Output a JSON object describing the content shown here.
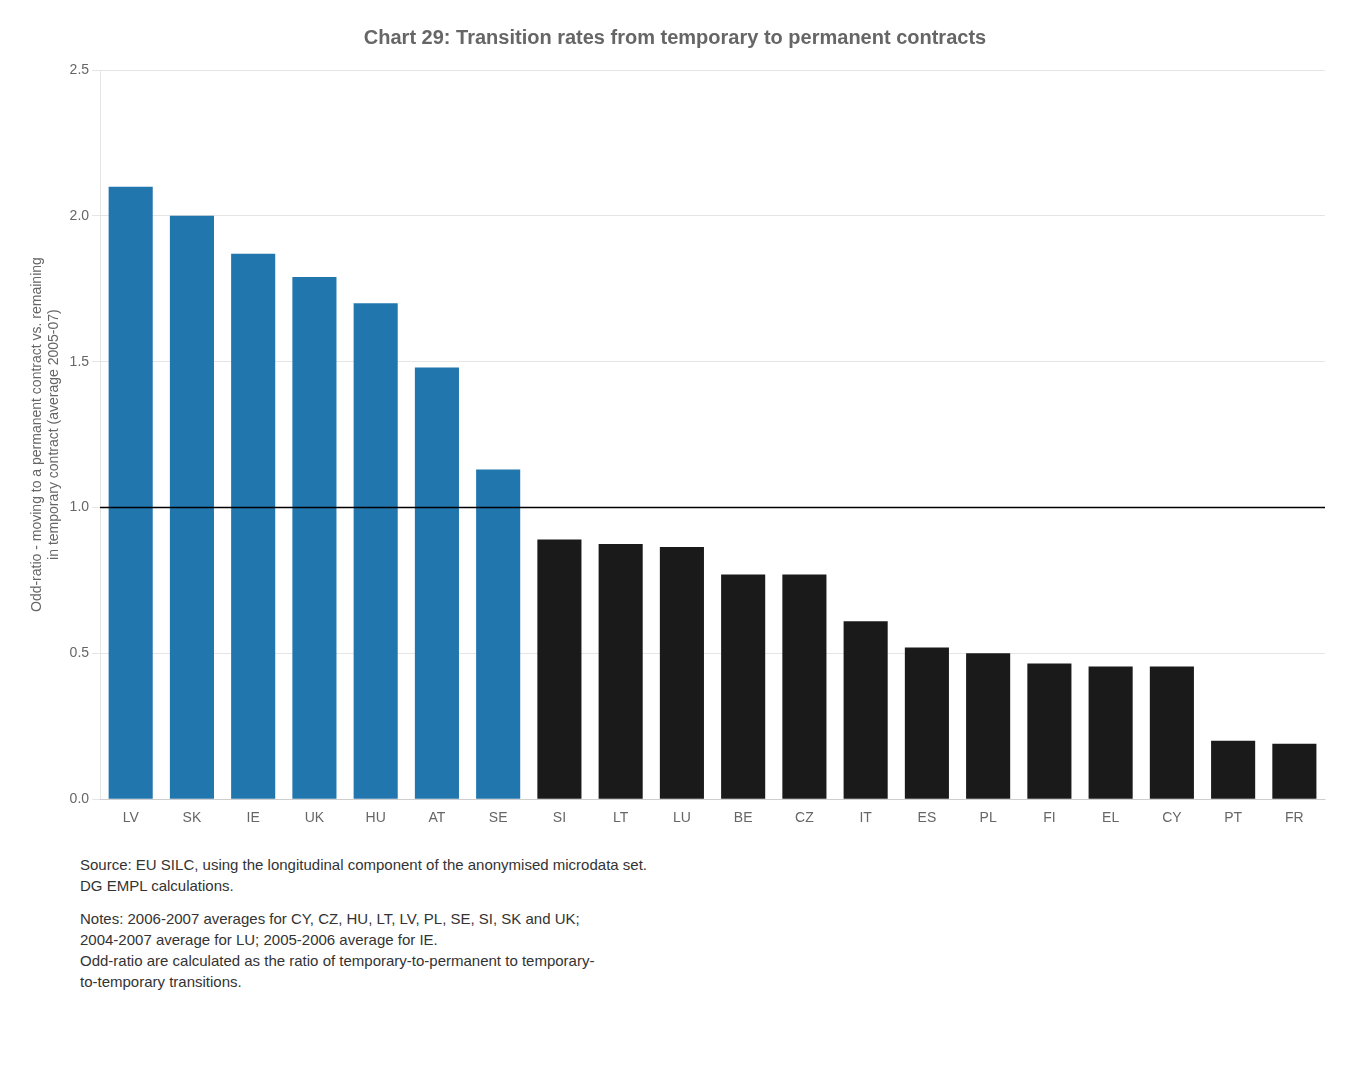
{
  "chart_data": {
    "type": "bar",
    "title": "Chart 29: Transition rates from temporary to permanent contracts",
    "ylabel": "Odd-ratio - moving to a permanent contract vs. remaining\nin temporary contract (average 2005-07)",
    "categories": [
      "LV",
      "SK",
      "IE",
      "UK",
      "HU",
      "AT",
      "SE",
      "SI",
      "LT",
      "LU",
      "BE",
      "CZ",
      "IT",
      "ES",
      "PL",
      "FI",
      "EL",
      "CY",
      "PT",
      "FR"
    ],
    "values": [
      2.1,
      2.0,
      1.87,
      1.79,
      1.7,
      1.48,
      1.13,
      0.89,
      0.875,
      0.865,
      0.77,
      0.77,
      0.61,
      0.52,
      0.5,
      0.465,
      0.455,
      0.455,
      0.2,
      0.19
    ],
    "colors": [
      "#2176AE",
      "#2176AE",
      "#2176AE",
      "#2176AE",
      "#2176AE",
      "#2176AE",
      "#2176AE",
      "#1a1a1a",
      "#1a1a1a",
      "#1a1a1a",
      "#1a1a1a",
      "#1a1a1a",
      "#1a1a1a",
      "#1a1a1a",
      "#1a1a1a",
      "#1a1a1a",
      "#1a1a1a",
      "#1a1a1a",
      "#1a1a1a",
      "#1a1a1a"
    ],
    "hline_y": 1.0,
    "ylim": [
      0.0,
      2.5
    ],
    "yticks": [
      {
        "value": 0.0,
        "label": "0.0"
      },
      0.5,
      {
        "value": 1.0,
        "label": "1.0"
      },
      1.5,
      {
        "value": 2.0,
        "label": "2.0"
      },
      2.5
    ],
    "grid": true,
    "annotations": [
      "Source: EU SILC, using the longitudinal component of the anonymised microdata set.\nDG EMPL calculations.",
      "Notes: 2006-2007 averages for CY, CZ, HU, LT, LV, PL, SE, SI, SK and UK;\n2004-2007 average for LU; 2005-2006 average for IE.\nOdd-ratio are calculated as the ratio of temporary-to-permanent to temporary-\nto-temporary transitions."
    ]
  }
}
